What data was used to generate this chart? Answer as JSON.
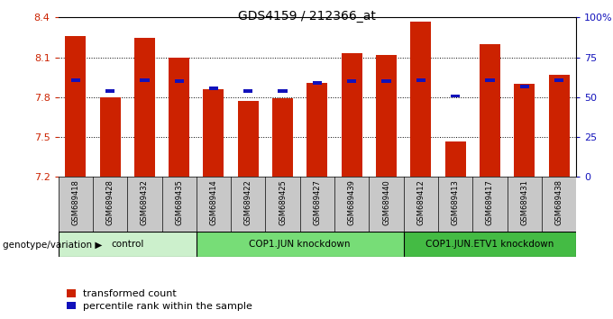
{
  "title": "GDS4159 / 212366_at",
  "samples": [
    "GSM689418",
    "GSM689428",
    "GSM689432",
    "GSM689435",
    "GSM689414",
    "GSM689422",
    "GSM689425",
    "GSM689427",
    "GSM689439",
    "GSM689440",
    "GSM689412",
    "GSM689413",
    "GSM689417",
    "GSM689431",
    "GSM689438"
  ],
  "bar_values": [
    8.26,
    7.8,
    8.25,
    8.1,
    7.86,
    7.77,
    7.79,
    7.91,
    8.13,
    8.12,
    8.37,
    7.47,
    8.2,
    7.9,
    7.97
  ],
  "percentile_values": [
    7.93,
    7.85,
    7.93,
    7.92,
    7.87,
    7.85,
    7.85,
    7.91,
    7.92,
    7.92,
    7.93,
    7.81,
    7.93,
    7.88,
    7.93
  ],
  "bar_color": "#cc2200",
  "percentile_color": "#1111bb",
  "ymin": 7.2,
  "ymax": 8.4,
  "yticks": [
    7.2,
    7.5,
    7.8,
    8.1,
    8.4
  ],
  "right_yticks": [
    0,
    25,
    50,
    75,
    100
  ],
  "groups": [
    {
      "label": "control",
      "start": 0,
      "end": 4,
      "color": "#ccf0cc"
    },
    {
      "label": "COP1.JUN knockdown",
      "start": 4,
      "end": 10,
      "color": "#77dd77"
    },
    {
      "label": "COP1.JUN.ETV1 knockdown",
      "start": 10,
      "end": 15,
      "color": "#44bb44"
    }
  ],
  "tick_bg_color": "#c8c8c8",
  "tick_label_color": "#cc2200",
  "right_label_color": "#1111bb",
  "legend_labels": [
    "transformed count",
    "percentile rank within the sample"
  ],
  "genotype_label": "genotype/variation"
}
